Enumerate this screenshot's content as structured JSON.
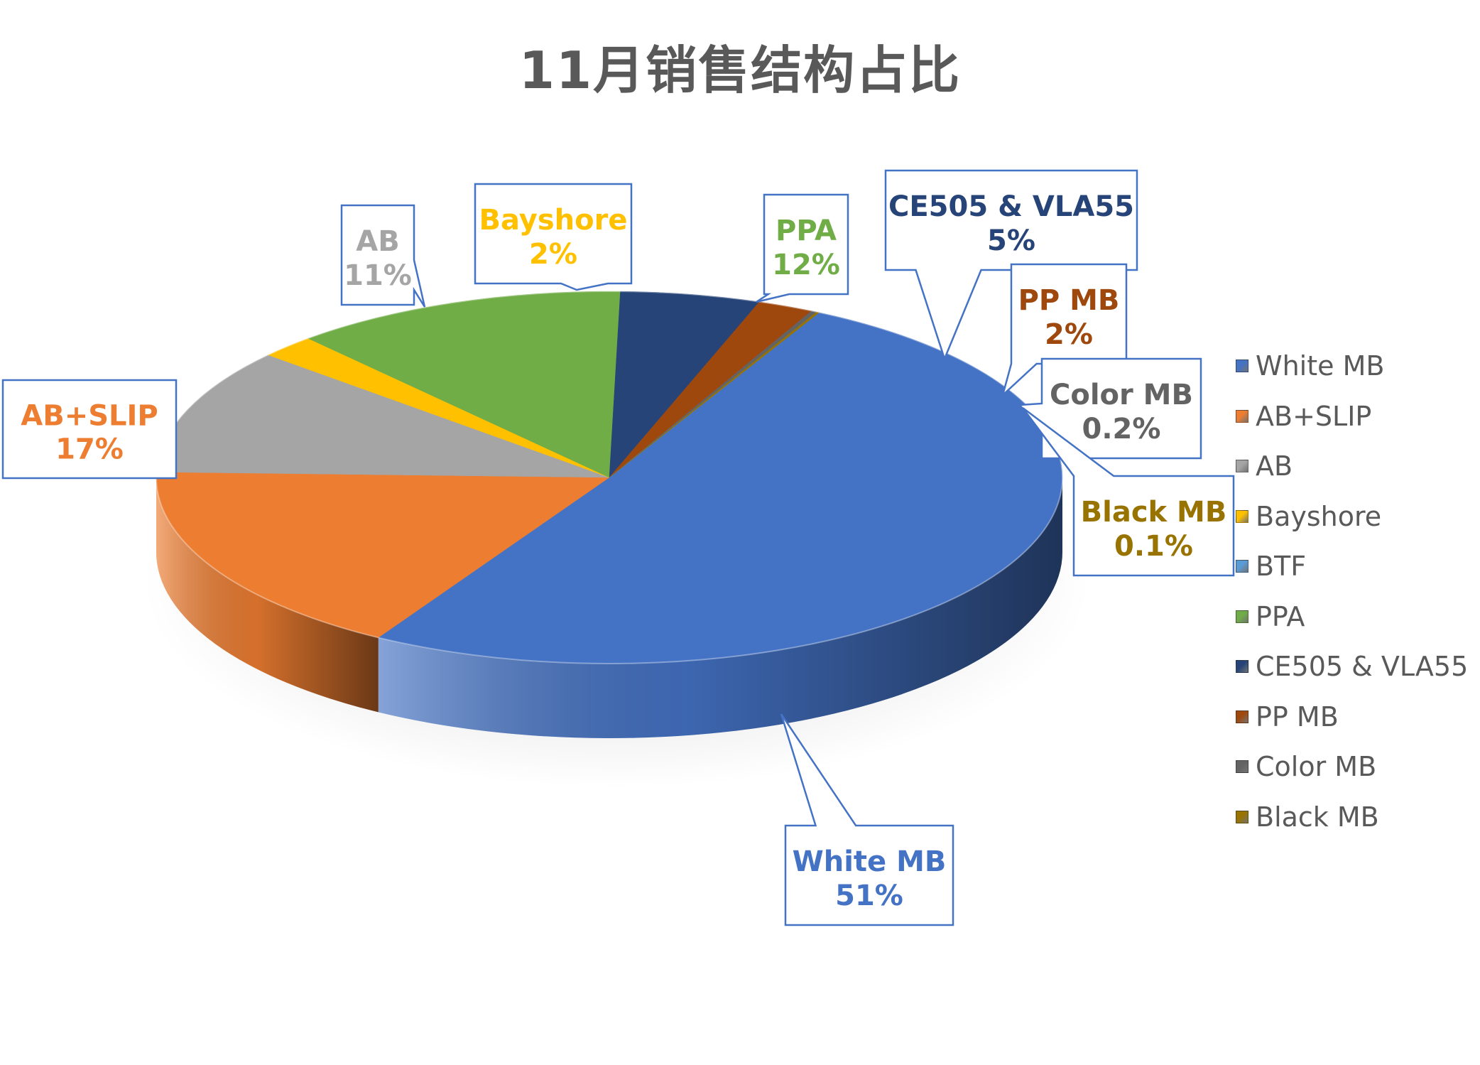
{
  "title": "11月销售结构占比",
  "chart_data": {
    "type": "pie",
    "title": "11月销售结构占比",
    "legend_position": "right",
    "slices": [
      {
        "name": "White MB",
        "value": 51,
        "label": "51%",
        "color": "#4472C4"
      },
      {
        "name": "AB+SLIP",
        "value": 17,
        "label": "17%",
        "color": "#ED7D31"
      },
      {
        "name": "AB",
        "value": 11,
        "label": "11%",
        "color": "#A5A5A5"
      },
      {
        "name": "Bayshore",
        "value": 2,
        "label": "2%",
        "color": "#FFC000"
      },
      {
        "name": "BTF",
        "value": 0,
        "label": "",
        "color": "#5B9BD5"
      },
      {
        "name": "PPA",
        "value": 12,
        "label": "12%",
        "color": "#70AD47"
      },
      {
        "name": "CE505 & VLA55",
        "value": 5,
        "label": "5%",
        "color": "#264478"
      },
      {
        "name": "PP MB",
        "value": 2,
        "label": "2%",
        "color": "#9E480E"
      },
      {
        "name": "Color MB",
        "value": 0.2,
        "label": "0.2%",
        "color": "#636363"
      },
      {
        "name": "Black MB",
        "value": 0.1,
        "label": "0.1%",
        "color": "#997300"
      }
    ]
  }
}
